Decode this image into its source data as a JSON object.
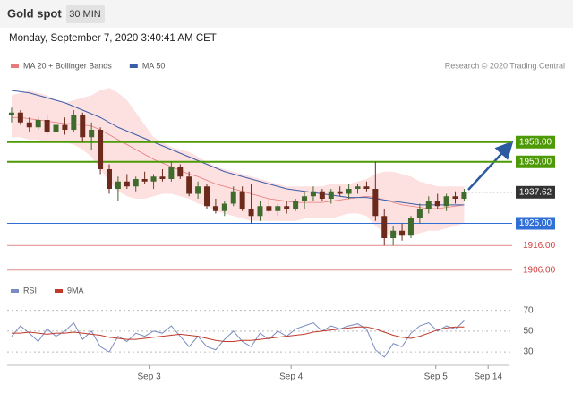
{
  "header": {
    "title": "Gold spot",
    "timeframe": "30 MIN",
    "timestamp": "Monday, September 7, 2020 3:40:41 AM CET"
  },
  "chart_data": [
    {
      "type": "candlestick",
      "source": "Research © 2020 Trading Central",
      "up_color": "#3f6b2c",
      "down_color": "#6b2a1c",
      "xlim": [
        -0.5,
        56
      ],
      "ylim": [
        1903,
        1983
      ],
      "ohlc": [
        [
          1969,
          1972,
          1966,
          1970
        ],
        [
          1970,
          1971,
          1965,
          1966
        ],
        [
          1966,
          1968,
          1962,
          1964
        ],
        [
          1964,
          1968,
          1963,
          1967
        ],
        [
          1967,
          1969,
          1961,
          1962
        ],
        [
          1962,
          1966,
          1960,
          1965
        ],
        [
          1965,
          1968,
          1961,
          1963
        ],
        [
          1963,
          1971,
          1962,
          1969
        ],
        [
          1969,
          1970,
          1958,
          1960
        ],
        [
          1960,
          1966,
          1955,
          1963
        ],
        [
          1963,
          1964,
          1945,
          1947
        ],
        [
          1947,
          1949,
          1937,
          1939
        ],
        [
          1939,
          1944,
          1934,
          1942
        ],
        [
          1942,
          1945,
          1939,
          1940
        ],
        [
          1940,
          1944,
          1938,
          1943
        ],
        [
          1943,
          1946,
          1941,
          1942
        ],
        [
          1942,
          1945,
          1939,
          1944
        ],
        [
          1944,
          1947,
          1942,
          1943
        ],
        [
          1943,
          1950,
          1942,
          1948
        ],
        [
          1948,
          1949,
          1943,
          1944
        ],
        [
          1944,
          1946,
          1936,
          1937
        ],
        [
          1937,
          1942,
          1935,
          1940
        ],
        [
          1940,
          1941,
          1931,
          1932
        ],
        [
          1932,
          1935,
          1929,
          1930
        ],
        [
          1930,
          1934,
          1928,
          1933
        ],
        [
          1933,
          1940,
          1932,
          1938
        ],
        [
          1938,
          1940,
          1930,
          1931
        ],
        [
          1931,
          1941,
          1925,
          1928
        ],
        [
          1928,
          1934,
          1926,
          1932
        ],
        [
          1932,
          1935,
          1929,
          1930
        ],
        [
          1930,
          1933,
          1928,
          1932
        ],
        [
          1932,
          1934,
          1929,
          1931
        ],
        [
          1931,
          1935,
          1930,
          1934
        ],
        [
          1934,
          1938,
          1931,
          1936
        ],
        [
          1936,
          1940,
          1934,
          1938
        ],
        [
          1938,
          1939,
          1934,
          1935
        ],
        [
          1935,
          1939,
          1933,
          1938
        ],
        [
          1938,
          1940,
          1936,
          1937
        ],
        [
          1937,
          1941,
          1935,
          1939
        ],
        [
          1939,
          1941,
          1937,
          1940
        ],
        [
          1940,
          1942,
          1938,
          1939
        ],
        [
          1939,
          1950,
          1926,
          1928
        ],
        [
          1928,
          1931,
          1916,
          1919
        ],
        [
          1919,
          1924,
          1916,
          1922
        ],
        [
          1922,
          1925,
          1918,
          1920
        ],
        [
          1920,
          1928,
          1919,
          1927
        ],
        [
          1927,
          1933,
          1925,
          1931
        ],
        [
          1931,
          1936,
          1929,
          1934
        ],
        [
          1934,
          1937,
          1931,
          1932
        ],
        [
          1932,
          1937,
          1930,
          1936
        ],
        [
          1936,
          1938,
          1933,
          1935
        ],
        [
          1935,
          1939,
          1934,
          1937.62
        ]
      ],
      "series": [
        {
          "name": "MA 20 + Bollinger Bands",
          "color": "#e87a7a",
          "band_color": "#fde0e0",
          "values": [
            1968,
            1968,
            1967.5,
            1967,
            1966.5,
            1966,
            1965.5,
            1965.5,
            1965,
            1964.5,
            1963,
            1961,
            1959,
            1957,
            1955,
            1953,
            1951,
            1949.5,
            1948,
            1946.5,
            1945,
            1944,
            1942.5,
            1941,
            1940,
            1939,
            1938,
            1937,
            1936,
            1935,
            1934.5,
            1934,
            1933.5,
            1933.5,
            1933.5,
            1933.5,
            1934,
            1934.5,
            1935,
            1935.5,
            1936,
            1935.5,
            1934.5,
            1933.5,
            1932.5,
            1932,
            1931.5,
            1931,
            1931,
            1931.5,
            1932,
            1932.5
          ],
          "upper": [
            1977,
            1978,
            1979,
            1978,
            1977,
            1975,
            1974,
            1975,
            1976,
            1977,
            1979,
            1980,
            1978,
            1975,
            1970,
            1965,
            1960,
            1958,
            1956,
            1955,
            1954,
            1952,
            1950,
            1948,
            1947,
            1946,
            1945,
            1944,
            1943,
            1942,
            1941,
            1940,
            1940,
            1940,
            1940,
            1940,
            1941,
            1941,
            1941,
            1942,
            1943,
            1945,
            1946,
            1946,
            1945,
            1944,
            1942,
            1941,
            1940,
            1940,
            1940,
            1940
          ],
          "lower": [
            1960,
            1960,
            1959,
            1959,
            1958,
            1958,
            1958,
            1957,
            1955,
            1952,
            1947,
            1942,
            1938,
            1936,
            1935,
            1935,
            1936,
            1937,
            1937,
            1936,
            1935,
            1933,
            1932,
            1930,
            1929,
            1928,
            1927,
            1926,
            1926,
            1926,
            1926,
            1926,
            1926,
            1927,
            1927,
            1927,
            1927,
            1928,
            1929,
            1929,
            1928,
            1924,
            1921,
            1920,
            1920,
            1920,
            1921,
            1922,
            1922,
            1923,
            1924,
            1925
          ]
        },
        {
          "name": "MA 50",
          "color": "#3b5ea8",
          "values": [
            1979,
            1978.5,
            1978,
            1977,
            1976,
            1975,
            1974,
            1972.5,
            1971,
            1969.5,
            1968,
            1966,
            1964,
            1962.5,
            1961,
            1959.5,
            1958,
            1956.5,
            1955,
            1953.5,
            1952,
            1950.5,
            1949,
            1947.5,
            1946,
            1945,
            1944,
            1943,
            1942,
            1941,
            1940,
            1939,
            1938.5,
            1938,
            1937.5,
            1937,
            1936.5,
            1936,
            1935.5,
            1935.5,
            1935.5,
            1935,
            1934.5,
            1934,
            1933.5,
            1933,
            1932.5,
            1932.5,
            1932.5,
            1932.5,
            1932.5,
            1932.5
          ]
        }
      ],
      "levels": [
        {
          "value": 1958,
          "label": "1958.00",
          "color": "#4e9a06",
          "style": "box"
        },
        {
          "value": 1950,
          "label": "1950.00",
          "color": "#4e9a06",
          "style": "box"
        },
        {
          "value": 1937.62,
          "label": "1937.62",
          "color": "#333333",
          "style": "last"
        },
        {
          "value": 1925,
          "label": "1925.00",
          "color": "#2f6fd6",
          "style": "box"
        },
        {
          "value": 1916,
          "label": "1916.00",
          "color": "#d04040",
          "style": "text"
        },
        {
          "value": 1906,
          "label": "1906.00",
          "color": "#d04040",
          "style": "text"
        }
      ]
    },
    {
      "type": "line",
      "xlim": [
        -0.5,
        56
      ],
      "ylim": [
        18,
        80
      ],
      "yticks": [
        70,
        50,
        30
      ],
      "xticks": [
        {
          "value": 15.5,
          "label": "Sep 3"
        },
        {
          "value": 31.5,
          "label": "Sep 4"
        },
        {
          "value": 47.8,
          "label": "Sep 5"
        },
        {
          "value": 53.7,
          "label": "Sep 14"
        }
      ],
      "series": [
        {
          "name": "RSI",
          "color": "#7a8cc0",
          "values": [
            45,
            55,
            48,
            40,
            52,
            45,
            50,
            58,
            42,
            50,
            35,
            30,
            45,
            40,
            48,
            45,
            50,
            48,
            55,
            45,
            35,
            45,
            35,
            32,
            42,
            50,
            40,
            35,
            48,
            42,
            50,
            45,
            52,
            55,
            58,
            50,
            55,
            52,
            55,
            57,
            52,
            32,
            25,
            38,
            35,
            48,
            55,
            58,
            50,
            55,
            52,
            60
          ]
        },
        {
          "name": "9MA",
          "color": "#c0392b",
          "values": [
            48,
            48,
            49,
            48,
            47,
            48,
            48,
            49,
            48,
            47,
            46,
            44,
            43,
            42,
            42,
            43,
            44,
            45,
            46,
            47,
            46,
            45,
            43,
            41,
            40,
            40,
            41,
            41,
            42,
            43,
            44,
            45,
            46,
            47,
            49,
            50,
            51,
            52,
            53,
            54,
            54,
            52,
            49,
            46,
            44,
            43,
            45,
            48,
            51,
            53,
            54,
            54
          ]
        }
      ]
    }
  ]
}
